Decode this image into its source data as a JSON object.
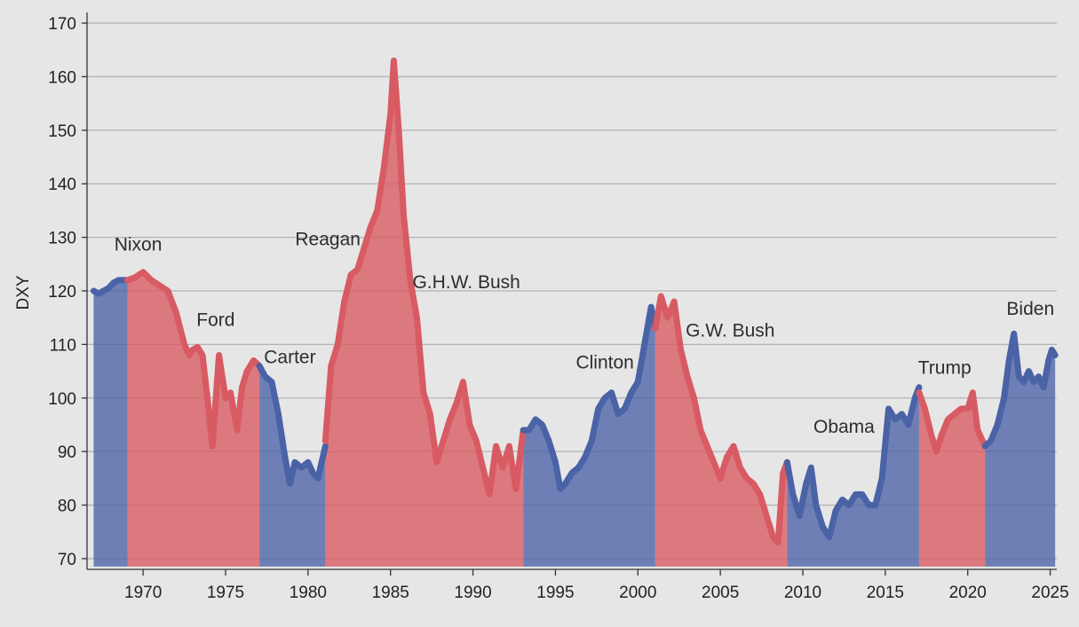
{
  "chart_data": {
    "type": "area",
    "title": "",
    "xlabel": "",
    "ylabel": "DXY",
    "xlim": [
      1966.6,
      2025.4
    ],
    "ylim": [
      68,
      172
    ],
    "grid": "horizontal",
    "x_ticks": [
      1970,
      1975,
      1980,
      1985,
      1990,
      1995,
      2000,
      2005,
      2010,
      2015,
      2020,
      2025
    ],
    "y_ticks": [
      70,
      80,
      90,
      100,
      110,
      120,
      130,
      140,
      150,
      160,
      170
    ],
    "colors": {
      "Democrat": "#4a62a6",
      "Republican": "#d85a62"
    },
    "eras": [
      {
        "label": "Nixon",
        "party": "Democrat",
        "start": 1967.0,
        "end": 1969.05,
        "label_x": 1969.7,
        "label_y": 127.5
      },
      {
        "label": "Nixon",
        "party": "Republican",
        "start": 1969.05,
        "end": 1977.05,
        "label_x": null,
        "label_y": null
      },
      {
        "label": "Ford",
        "party": "Republican",
        "start": 1974.6,
        "end": 1977.05,
        "label_x": 1974.4,
        "label_y": 113.5
      },
      {
        "label": "Carter",
        "party": "Democrat",
        "start": 1977.05,
        "end": 1981.05,
        "label_x": 1978.9,
        "label_y": 106.5
      },
      {
        "label": "Reagan",
        "party": "Republican",
        "start": 1981.05,
        "end": 1993.05,
        "label_x": 1981.2,
        "label_y": 128.5
      },
      {
        "label": "G.H.W. Bush",
        "party": "Republican",
        "start": 1989.05,
        "end": 1993.05,
        "label_x": 1989.6,
        "label_y": 120.5
      },
      {
        "label": "Clinton",
        "party": "Democrat",
        "start": 1993.05,
        "end": 2001.05,
        "label_x": 1998.0,
        "label_y": 105.5
      },
      {
        "label": "G.W. Bush",
        "party": "Republican",
        "start": 2001.05,
        "end": 2009.05,
        "label_x": 2005.6,
        "label_y": 111.5
      },
      {
        "label": "Obama",
        "party": "Democrat",
        "start": 2009.05,
        "end": 2017.05,
        "label_x": 2012.5,
        "label_y": 93.5
      },
      {
        "label": "Trump",
        "party": "Republican",
        "start": 2017.05,
        "end": 2021.05,
        "label_x": 2018.6,
        "label_y": 104.5
      },
      {
        "label": "Biden",
        "party": "Democrat",
        "start": 2021.05,
        "end": 2025.3,
        "label_x": 2023.8,
        "label_y": 115.5
      }
    ],
    "era_labels": [
      {
        "text": "Nixon",
        "x": 1969.7,
        "y": 127.5
      },
      {
        "text": "Ford",
        "x": 1974.4,
        "y": 113.5
      },
      {
        "text": "Carter",
        "x": 1978.9,
        "y": 106.5
      },
      {
        "text": "Reagan",
        "x": 1981.2,
        "y": 128.5
      },
      {
        "text": "G.H.W. Bush",
        "x": 1989.6,
        "y": 120.5
      },
      {
        "text": "Clinton",
        "x": 1998.0,
        "y": 105.5
      },
      {
        "text": "G.W. Bush",
        "x": 2005.6,
        "y": 111.5
      },
      {
        "text": "Obama",
        "x": 2012.5,
        "y": 93.5
      },
      {
        "text": "Trump",
        "x": 2018.6,
        "y": 104.5
      },
      {
        "text": "Biden",
        "x": 2023.8,
        "y": 115.5
      }
    ],
    "series": [
      {
        "party": "Democrat",
        "start": 1967.0,
        "end": 1969.05,
        "x": [
          1967.0,
          1967.3,
          1967.6,
          1967.9,
          1968.2,
          1968.5,
          1968.8,
          1969.05
        ],
        "y": [
          120,
          119.5,
          120,
          120.5,
          121.5,
          122,
          122,
          122
        ]
      },
      {
        "party": "Republican",
        "start": 1969.05,
        "end": 1977.05,
        "x": [
          1969.05,
          1969.5,
          1970.0,
          1970.5,
          1971.0,
          1971.5,
          1972.0,
          1972.5,
          1972.8,
          1973.0,
          1973.3,
          1973.6,
          1973.9,
          1974.2,
          1974.6,
          1975.0,
          1975.3,
          1975.7,
          1976.0,
          1976.3,
          1976.7,
          1977.05
        ],
        "y": [
          122,
          122.5,
          123.5,
          122,
          121,
          120,
          116,
          110,
          108,
          109,
          109.5,
          108,
          100,
          91,
          108,
          100,
          101,
          94,
          102,
          105,
          107,
          106
        ]
      },
      {
        "party": "Democrat",
        "start": 1977.05,
        "end": 1981.05,
        "x": [
          1977.05,
          1977.4,
          1977.8,
          1978.2,
          1978.6,
          1978.9,
          1979.2,
          1979.6,
          1980.0,
          1980.3,
          1980.6,
          1981.05
        ],
        "y": [
          106,
          104,
          103,
          97,
          89,
          84,
          88,
          87,
          88,
          86,
          85,
          91
        ]
      },
      {
        "party": "Republican",
        "start": 1981.05,
        "end": 1993.05,
        "x": [
          1981.05,
          1981.4,
          1981.8,
          1982.2,
          1982.6,
          1983.0,
          1983.4,
          1983.8,
          1984.2,
          1984.6,
          1985.0,
          1985.2,
          1985.5,
          1985.8,
          1986.2,
          1986.6,
          1987.0,
          1987.4,
          1987.8,
          1988.2,
          1988.6,
          1989.0,
          1989.4,
          1989.8,
          1990.2,
          1990.6,
          1991.0,
          1991.4,
          1991.8,
          1992.2,
          1992.6,
          1993.05
        ],
        "y": [
          92,
          106,
          110,
          118,
          123,
          124,
          128,
          132,
          135,
          143,
          153,
          163,
          150,
          134,
          122,
          115,
          101,
          97,
          88,
          92,
          96,
          99,
          103,
          95,
          92,
          87,
          82,
          91,
          87,
          91,
          83,
          94
        ]
      },
      {
        "party": "Democrat",
        "start": 1993.05,
        "end": 2001.05,
        "x": [
          1993.05,
          1993.4,
          1993.8,
          1994.2,
          1994.6,
          1995.0,
          1995.3,
          1995.6,
          1996.0,
          1996.4,
          1996.8,
          1997.2,
          1997.6,
          1998.0,
          1998.4,
          1998.8,
          1999.2,
          1999.6,
          2000.0,
          2000.4,
          2000.8,
          2001.05
        ],
        "y": [
          94,
          94,
          96,
          95,
          92,
          88,
          83,
          84,
          86,
          87,
          89,
          92,
          98,
          100,
          101,
          97,
          98,
          101,
          103,
          110,
          117,
          113
        ]
      },
      {
        "party": "Republican",
        "start": 2001.05,
        "end": 2009.05,
        "x": [
          2001.05,
          2001.4,
          2001.8,
          2002.2,
          2002.6,
          2003.0,
          2003.4,
          2003.8,
          2004.2,
          2004.6,
          2005.0,
          2005.4,
          2005.8,
          2006.2,
          2006.6,
          2007.0,
          2007.4,
          2007.8,
          2008.2,
          2008.5,
          2008.8,
          2009.05
        ],
        "y": [
          113,
          119,
          115,
          118,
          109,
          104,
          100,
          94,
          91,
          88,
          85,
          89,
          91,
          87,
          85,
          84,
          82,
          78,
          74,
          73,
          86,
          88
        ]
      },
      {
        "party": "Democrat",
        "start": 2009.05,
        "end": 2017.05,
        "x": [
          2009.05,
          2009.4,
          2009.8,
          2010.2,
          2010.5,
          2010.8,
          2011.2,
          2011.6,
          2012.0,
          2012.4,
          2012.8,
          2013.2,
          2013.6,
          2014.0,
          2014.4,
          2014.8,
          2015.2,
          2015.6,
          2016.0,
          2016.4,
          2016.8,
          2017.05
        ],
        "y": [
          88,
          82,
          78,
          84,
          87,
          80,
          76,
          74,
          79,
          81,
          80,
          82,
          82,
          80,
          80,
          85,
          98,
          96,
          97,
          95,
          100,
          102
        ]
      },
      {
        "party": "Republican",
        "start": 2017.05,
        "end": 2021.05,
        "x": [
          2017.05,
          2017.4,
          2017.8,
          2018.1,
          2018.4,
          2018.8,
          2019.2,
          2019.6,
          2020.0,
          2020.3,
          2020.6,
          2021.05
        ],
        "y": [
          101,
          98,
          93,
          90,
          93,
          96,
          97,
          98,
          98,
          101,
          94,
          91
        ]
      },
      {
        "party": "Democrat",
        "start": 2021.05,
        "end": 2025.3,
        "x": [
          2021.05,
          2021.4,
          2021.8,
          2022.2,
          2022.5,
          2022.8,
          2023.1,
          2023.4,
          2023.7,
          2024.0,
          2024.3,
          2024.6,
          2024.9,
          2025.1,
          2025.3
        ],
        "y": [
          91,
          92,
          95,
          100,
          107,
          112,
          104,
          103,
          105,
          103,
          104,
          102,
          107,
          109,
          108
        ]
      }
    ]
  }
}
